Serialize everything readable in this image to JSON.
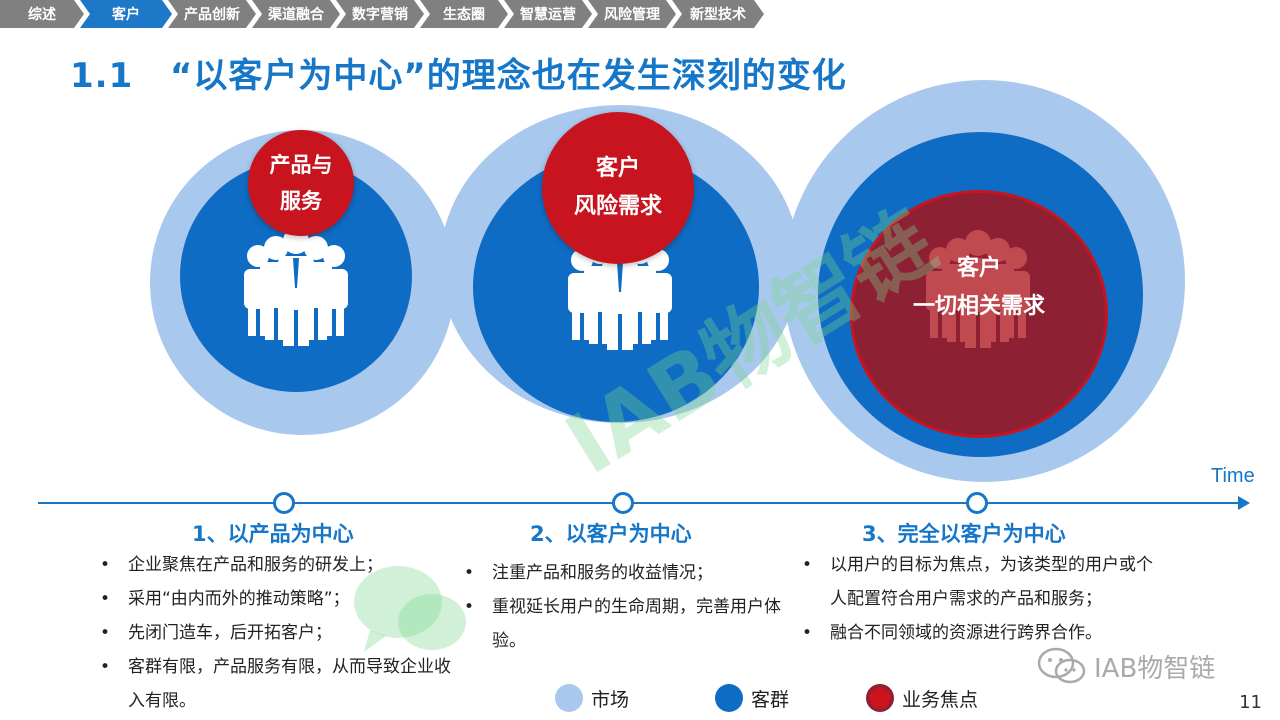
{
  "nav": {
    "tabs": [
      {
        "label": "综述",
        "active": false
      },
      {
        "label": "客户",
        "active": true
      },
      {
        "label": "产品创新",
        "active": false
      },
      {
        "label": "渠道融合",
        "active": false
      },
      {
        "label": "数字营销",
        "active": false
      },
      {
        "label": "生态圈",
        "active": false
      },
      {
        "label": "智慧运营",
        "active": false
      },
      {
        "label": "风险管理",
        "active": false
      },
      {
        "label": "新型技术",
        "active": false
      }
    ]
  },
  "title": {
    "number": "1.1",
    "text": "“以客户为中心”的理念也在发生深刻的变化"
  },
  "watermark": {
    "text": "IAB物智链"
  },
  "circles": [
    {
      "focus_line1": "产品与",
      "focus_line2": "服务"
    },
    {
      "focus_line1": "客户",
      "focus_line2": "风险需求"
    },
    {
      "focus_line1": "客户",
      "focus_line2": "一切相关需求"
    }
  ],
  "timeline": {
    "axis_label": "Time"
  },
  "stages": [
    {
      "title": "1、以产品为中心",
      "bullets": [
        "企业聚焦在产品和服务的研发上；",
        "采用“由内而外的推动策略”；",
        "先闭门造车，后开拓客户；",
        "客群有限，产品服务有限，从而导致企业收入有限。"
      ]
    },
    {
      "title": "2、以客户为中心",
      "bullets": [
        "注重产品和服务的收益情况；",
        "重视延长用户的生命周期，完善用户体验。"
      ]
    },
    {
      "title": "3、完全以客户为中心",
      "bullets": [
        "以用户的目标为焦点，为该类型的用户或个人配置符合用户需求的产品和服务；",
        "融合不同领域的资源进行跨界合作。"
      ]
    }
  ],
  "legend": [
    {
      "label": "市场",
      "color": "#a9c8ee"
    },
    {
      "label": "客群",
      "color": "#0f6cc4"
    },
    {
      "label": "业务焦点",
      "color": "#c7141e"
    }
  ],
  "brand": {
    "text": "IAB物智链",
    "icon": "wechat-icon"
  },
  "page_number": "11",
  "colors": {
    "accent": "#1677c9",
    "nav_inactive": "#808080",
    "focus_red": "#c7141e"
  }
}
